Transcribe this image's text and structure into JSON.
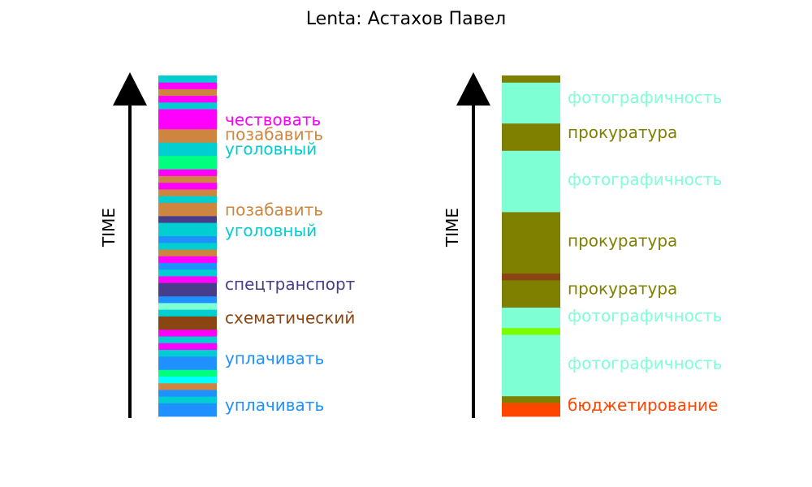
{
  "title": "Lenta: Астахов Павел",
  "chart_data": [
    {
      "type": "timeline-strip",
      "axis_label": "TIME",
      "segments": [
        {
          "start": 0,
          "end": 2,
          "color": "#1e90ff"
        },
        {
          "start": 2,
          "end": 3,
          "color": "#00ced1"
        },
        {
          "start": 3,
          "end": 4,
          "color": "#1e90ff"
        },
        {
          "start": 4,
          "end": 5,
          "color": "#cd853f"
        },
        {
          "start": 5,
          "end": 6,
          "color": "#00ffff"
        },
        {
          "start": 6,
          "end": 7,
          "color": "#00ff7f"
        },
        {
          "start": 7,
          "end": 9,
          "color": "#1e90ff"
        },
        {
          "start": 9,
          "end": 10,
          "color": "#00ced1"
        },
        {
          "start": 10,
          "end": 11,
          "color": "#ff00ff"
        },
        {
          "start": 11,
          "end": 12,
          "color": "#00ced1"
        },
        {
          "start": 12,
          "end": 13,
          "color": "#ff00ff"
        },
        {
          "start": 13,
          "end": 15,
          "color": "#8b4513"
        },
        {
          "start": 15,
          "end": 16,
          "color": "#00ced1"
        },
        {
          "start": 16,
          "end": 17,
          "color": "#7fffd4"
        },
        {
          "start": 17,
          "end": 18,
          "color": "#1e90ff"
        },
        {
          "start": 18,
          "end": 20,
          "color": "#483d8b"
        },
        {
          "start": 20,
          "end": 21,
          "color": "#ff00ff"
        },
        {
          "start": 21,
          "end": 22,
          "color": "#00ced1"
        },
        {
          "start": 22,
          "end": 23,
          "color": "#1e90ff"
        },
        {
          "start": 23,
          "end": 24,
          "color": "#ff00ff"
        },
        {
          "start": 24,
          "end": 25,
          "color": "#cd853f"
        },
        {
          "start": 25,
          "end": 26,
          "color": "#00ced1"
        },
        {
          "start": 26,
          "end": 27,
          "color": "#1e90ff"
        },
        {
          "start": 27,
          "end": 29,
          "color": "#00ced1"
        },
        {
          "start": 29,
          "end": 30,
          "color": "#483d8b"
        },
        {
          "start": 30,
          "end": 32,
          "color": "#cd853f"
        },
        {
          "start": 32,
          "end": 33,
          "color": "#00ced1"
        },
        {
          "start": 33,
          "end": 34,
          "color": "#cd853f"
        },
        {
          "start": 34,
          "end": 35,
          "color": "#ff00ff"
        },
        {
          "start": 35,
          "end": 36,
          "color": "#cd853f"
        },
        {
          "start": 36,
          "end": 37,
          "color": "#ff00ff"
        },
        {
          "start": 37,
          "end": 39,
          "color": "#00ff7f"
        },
        {
          "start": 39,
          "end": 40,
          "color": "#00ced1"
        },
        {
          "start": 40,
          "end": 41,
          "color": "#00ced1"
        },
        {
          "start": 41,
          "end": 43,
          "color": "#cd853f"
        },
        {
          "start": 43,
          "end": 46,
          "color": "#ff00ff"
        },
        {
          "start": 46,
          "end": 47,
          "color": "#00ced1"
        },
        {
          "start": 47,
          "end": 48,
          "color": "#ff00ff"
        },
        {
          "start": 48,
          "end": 49,
          "color": "#cd853f"
        },
        {
          "start": 49,
          "end": 50,
          "color": "#ff00ff"
        },
        {
          "start": 50,
          "end": 51,
          "color": "#00ced1"
        }
      ],
      "labels": [
        {
          "text": "уплачивать",
          "at": 1.5,
          "color": "#1e90ff"
        },
        {
          "text": "уплачивать",
          "at": 8.5,
          "color": "#1e90ff"
        },
        {
          "text": "схематический",
          "at": 14.6,
          "color": "#8b4513"
        },
        {
          "text": "спецтранспорт",
          "at": 19.6,
          "color": "#483d8b"
        },
        {
          "text": "уголовный",
          "at": 27.6,
          "color": "#00ced1"
        },
        {
          "text": "позабавить",
          "at": 30.7,
          "color": "#cd853f"
        },
        {
          "text": "уголовный",
          "at": 39.8,
          "color": "#00ced1"
        },
        {
          "text": "позабавить",
          "at": 42,
          "color": "#cd853f"
        },
        {
          "text": "чествовать",
          "at": 44.2,
          "color": "#ff00ff"
        }
      ]
    },
    {
      "type": "timeline-strip",
      "axis_label": "TIME",
      "segments": [
        {
          "start": 0,
          "end": 2,
          "color": "#ff4500"
        },
        {
          "start": 2,
          "end": 3,
          "color": "#808000"
        },
        {
          "start": 3,
          "end": 12,
          "color": "#7fffd4"
        },
        {
          "start": 12,
          "end": 13,
          "color": "#7cfc00"
        },
        {
          "start": 13,
          "end": 16,
          "color": "#7fffd4"
        },
        {
          "start": 16,
          "end": 20,
          "color": "#808000"
        },
        {
          "start": 20,
          "end": 21,
          "color": "#8b4513"
        },
        {
          "start": 21,
          "end": 30,
          "color": "#808000"
        },
        {
          "start": 30,
          "end": 39,
          "color": "#7fffd4"
        },
        {
          "start": 39,
          "end": 43,
          "color": "#808000"
        },
        {
          "start": 43,
          "end": 49,
          "color": "#7fffd4"
        },
        {
          "start": 49,
          "end": 50,
          "color": "#808000"
        }
      ],
      "labels": [
        {
          "text": "бюджетирование",
          "at": 1.5,
          "color": "#ff4500"
        },
        {
          "text": "фотографичность",
          "at": 7.6,
          "color": "#7fffd4"
        },
        {
          "text": "фотографичность",
          "at": 14.6,
          "color": "#7fffd4"
        },
        {
          "text": "прокуратура",
          "at": 18.6,
          "color": "#808000"
        },
        {
          "text": "прокуратура",
          "at": 25.6,
          "color": "#808000"
        },
        {
          "text": "фотографичность",
          "at": 34.6,
          "color": "#7fffd4"
        },
        {
          "text": "прокуратура",
          "at": 41.5,
          "color": "#808000"
        },
        {
          "text": "фотографичность",
          "at": 46.6,
          "color": "#7fffd4"
        }
      ]
    }
  ]
}
